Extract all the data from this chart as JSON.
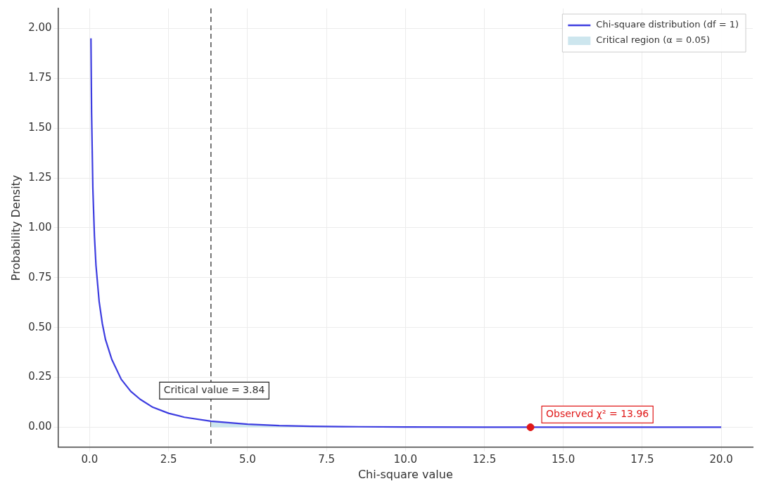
{
  "chart_data": {
    "type": "line",
    "xlabel": "Chi-square value",
    "ylabel": "Probability Density",
    "series": [
      {
        "name": "Chi-square distribution (df = 1)",
        "color": "#3d3de0",
        "marker": "none",
        "x": [
          0.04,
          0.06,
          0.1,
          0.15,
          0.2,
          0.3,
          0.4,
          0.5,
          0.7,
          1.0,
          1.3,
          1.6,
          2.0,
          2.5,
          3.0,
          3.84,
          5.0,
          6.0,
          7.0,
          8.0,
          10.0,
          12.5,
          15.0,
          17.5,
          20.0
        ],
        "values": [
          1.95,
          1.58,
          1.2,
          0.96,
          0.81,
          0.63,
          0.52,
          0.44,
          0.34,
          0.24,
          0.18,
          0.14,
          0.1,
          0.07,
          0.05,
          0.03,
          0.015,
          0.008,
          0.005,
          0.003,
          0.001,
          0.0,
          0.0,
          0.0,
          0.0
        ]
      },
      {
        "name": "Critical region (α = 0.05)",
        "type": "area",
        "color": "#cde6ee",
        "x": [
          3.84,
          5.0,
          6.0,
          7.0,
          8.0,
          10.0,
          12.5,
          20.0
        ],
        "values": [
          0.03,
          0.015,
          0.008,
          0.005,
          0.003,
          0.001,
          0.0,
          0.0
        ]
      },
      {
        "type": "scatter",
        "color": "#e01818",
        "marker": "circle",
        "x": [
          13.96
        ],
        "values": [
          0.0
        ]
      }
    ],
    "xlim": [
      -1.0,
      21.0
    ],
    "ylim": [
      -0.1,
      2.1
    ],
    "xticks": [
      {
        "value": 0,
        "label": "0.0"
      },
      {
        "value": 2.5,
        "label": "2.5"
      },
      {
        "value": 5,
        "label": "5.0"
      },
      {
        "value": 7.5,
        "label": "7.5"
      },
      {
        "value": 10,
        "label": "10.0"
      },
      {
        "value": 12.5,
        "label": "12.5"
      },
      {
        "value": 15,
        "label": "15.0"
      },
      {
        "value": 17.5,
        "label": "17.5"
      },
      {
        "value": 20,
        "label": "20.0"
      }
    ],
    "yticks": [
      {
        "value": 0,
        "label": "0.00"
      },
      {
        "value": 0.25,
        "label": "0.25"
      },
      {
        "value": 0.5,
        "label": "0.50"
      },
      {
        "value": 0.75,
        "label": "0.75"
      },
      {
        "value": 1,
        "label": "1.00"
      },
      {
        "value": 1.25,
        "label": "1.25"
      },
      {
        "value": 1.5,
        "label": "1.50"
      },
      {
        "value": 1.75,
        "label": "1.75"
      },
      {
        "value": 2,
        "label": "2.00"
      }
    ],
    "grid": true,
    "legend": "top right",
    "ref_lines": [
      {
        "axis": "x",
        "value": 3.84,
        "label": "Critical value = 3.84",
        "color": "#555555",
        "line_style": "dashed"
      }
    ],
    "annotations": [
      {
        "text": "Observed χ² = 13.96",
        "x": 13.96,
        "y": 0.0
      }
    ]
  }
}
